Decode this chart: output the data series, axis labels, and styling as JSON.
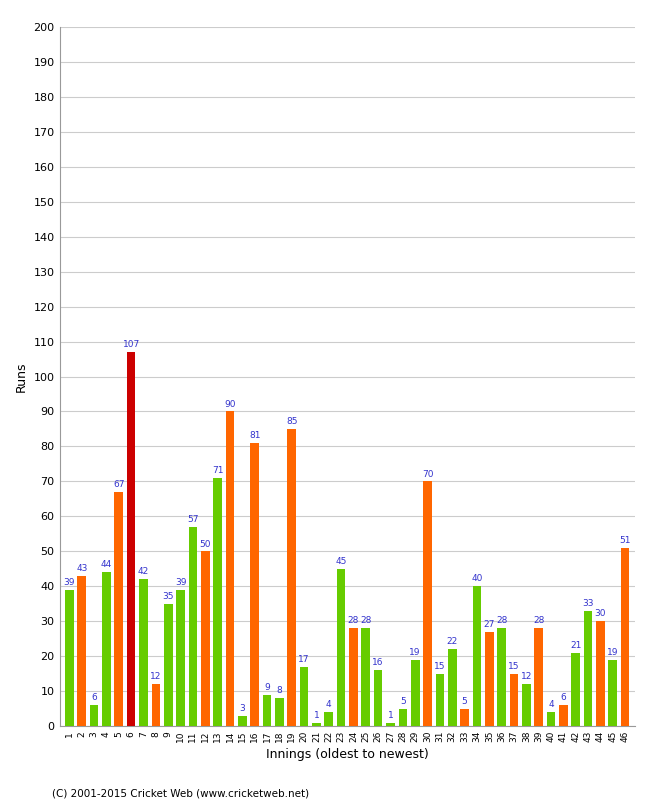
{
  "xlabel": "Innings (oldest to newest)",
  "ylabel": "Runs",
  "ylim": [
    0,
    200
  ],
  "yticks": [
    0,
    10,
    20,
    30,
    40,
    50,
    60,
    70,
    80,
    90,
    100,
    110,
    120,
    130,
    140,
    150,
    160,
    170,
    180,
    190,
    200
  ],
  "innings": [
    1,
    2,
    3,
    4,
    5,
    6,
    7,
    8,
    9,
    10,
    11,
    12,
    13,
    14,
    15,
    16,
    17,
    18,
    19,
    20,
    21,
    22,
    23,
    24,
    25,
    26,
    27,
    28,
    29,
    30,
    31,
    32,
    33,
    34,
    35,
    36,
    37,
    38,
    39,
    40,
    41,
    42,
    43,
    44,
    45,
    46
  ],
  "values": [
    39,
    43,
    6,
    44,
    67,
    107,
    42,
    12,
    35,
    39,
    57,
    50,
    71,
    90,
    3,
    81,
    9,
    8,
    85,
    17,
    1,
    4,
    45,
    28,
    28,
    16,
    1,
    5,
    19,
    70,
    15,
    22,
    5,
    40,
    27,
    28,
    15,
    12,
    28,
    4,
    6,
    21,
    33,
    30,
    19,
    51
  ],
  "colors": [
    "G",
    "O",
    "G",
    "G",
    "O",
    "R",
    "G",
    "O",
    "G",
    "G",
    "G",
    "O",
    "G",
    "O",
    "G",
    "O",
    "G",
    "G",
    "O",
    "G",
    "G",
    "G",
    "G",
    "O",
    "G",
    "G",
    "G",
    "G",
    "G",
    "O",
    "G",
    "G",
    "O",
    "G",
    "O",
    "G",
    "O",
    "G",
    "O",
    "G",
    "O",
    "G",
    "G",
    "O",
    "G",
    "O"
  ],
  "green_color": "#66cc00",
  "orange_color": "#ff6600",
  "red_color": "#cc0000",
  "label_color": "#3333cc",
  "label_fontsize": 6.5,
  "background_color": "#ffffff",
  "grid_color": "#cccccc",
  "footer": "(C) 2001-2015 Cricket Web (www.cricketweb.net)"
}
